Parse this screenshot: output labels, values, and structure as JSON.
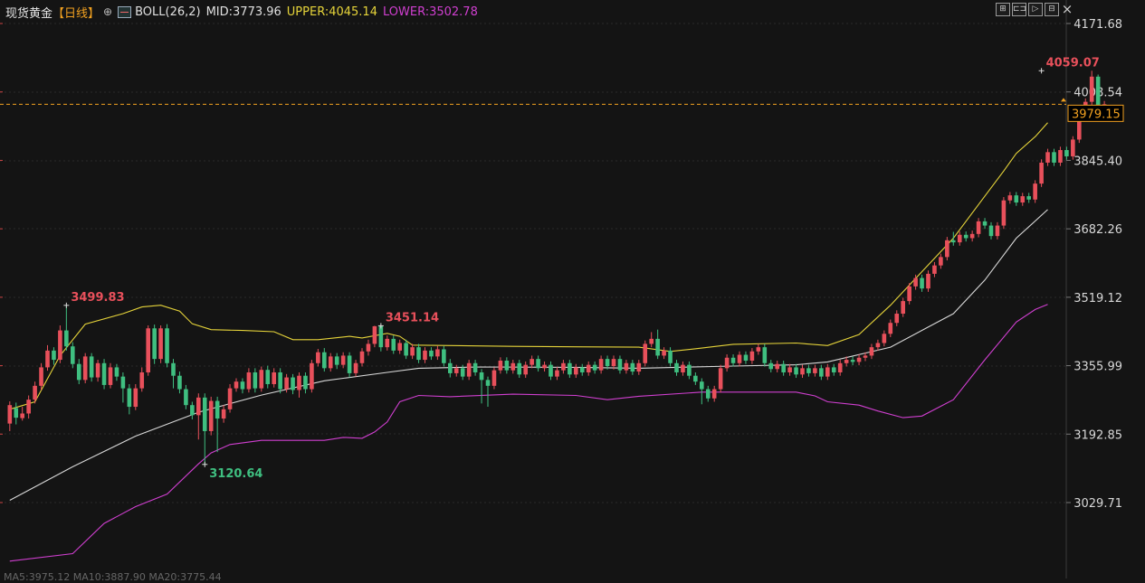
{
  "header": {
    "title": "现货黄金",
    "period": "【日线】",
    "period_arrow": "⊕",
    "indicator": "BOLL(26,2)",
    "mid": "MID:3773.96",
    "upper": "UPPER:4045.14",
    "lower": "LOWER:3502.78"
  },
  "toolbar": {
    "buttons": [
      "⊞",
      "⊏⊐",
      "▷",
      "⊟"
    ],
    "close": "×"
  },
  "footer_text": "MA5:3975.12  MA10:3887.90  MA20:3775.44",
  "colors": {
    "background": "#141414",
    "up": "#e8505b",
    "down": "#3fbf80",
    "mid": "#d8d8d8",
    "upper": "#e6d43a",
    "lower": "#d03fd0",
    "current_price": "#f0a020"
  },
  "chart_data": {
    "type": "candlestick",
    "indicator": "BOLL(26,2)",
    "y_ticks": [
      "4171.68",
      "4008.54",
      "3845.40",
      "3682.26",
      "3519.12",
      "3355.99",
      "3192.85",
      "3029.71"
    ],
    "ylim": [
      2880,
      4200
    ],
    "current_price": "3979.15",
    "annotations": [
      {
        "text": "3499.83",
        "value": 3499.83,
        "index": 9,
        "side": "high",
        "color": "#e8505b"
      },
      {
        "text": "3120.64",
        "value": 3120.64,
        "index": 31,
        "side": "low",
        "color": "#3fbf80"
      },
      {
        "text": "3451.14",
        "value": 3451.14,
        "index": 59,
        "side": "high",
        "color": "#e8505b"
      },
      {
        "text": "4059.07",
        "value": 4059.07,
        "index": 164,
        "side": "high",
        "color": "#e8505b"
      }
    ],
    "candles": [
      [
        3218,
        3262,
        3200,
        3271
      ],
      [
        3255,
        3232,
        3216,
        3268
      ],
      [
        3231,
        3242,
        3225,
        3258
      ],
      [
        3242,
        3275,
        3230,
        3285
      ],
      [
        3275,
        3308,
        3266,
        3318
      ],
      [
        3308,
        3352,
        3298,
        3362
      ],
      [
        3352,
        3392,
        3344,
        3405
      ],
      [
        3392,
        3370,
        3358,
        3400
      ],
      [
        3370,
        3440,
        3362,
        3452
      ],
      [
        3440,
        3402,
        3392,
        3499.83
      ],
      [
        3402,
        3360,
        3350,
        3412
      ],
      [
        3360,
        3322,
        3312,
        3372
      ],
      [
        3322,
        3378,
        3314,
        3386
      ],
      [
        3378,
        3328,
        3318,
        3386
      ],
      [
        3328,
        3362,
        3318,
        3370
      ],
      [
        3362,
        3310,
        3300,
        3372
      ],
      [
        3310,
        3352,
        3302,
        3362
      ],
      [
        3352,
        3330,
        3320,
        3360
      ],
      [
        3330,
        3302,
        3268,
        3340
      ],
      [
        3302,
        3258,
        3240,
        3312
      ],
      [
        3258,
        3302,
        3250,
        3312
      ],
      [
        3302,
        3340,
        3294,
        3352
      ],
      [
        3340,
        3445,
        3332,
        3452
      ],
      [
        3445,
        3372,
        3360,
        3454
      ],
      [
        3372,
        3445,
        3362,
        3452
      ],
      [
        3445,
        3362,
        3352,
        3455
      ],
      [
        3362,
        3332,
        3302,
        3372
      ],
      [
        3332,
        3300,
        3290,
        3342
      ],
      [
        3300,
        3262,
        3252,
        3310
      ],
      [
        3262,
        3238,
        3228,
        3270
      ],
      [
        3238,
        3280,
        3180,
        3290
      ],
      [
        3280,
        3200,
        3120.64,
        3290
      ],
      [
        3200,
        3272,
        3190,
        3282
      ],
      [
        3272,
        3230,
        3150,
        3282
      ],
      [
        3230,
        3252,
        3220,
        3262
      ],
      [
        3252,
        3302,
        3244,
        3312
      ],
      [
        3302,
        3318,
        3294,
        3326
      ],
      [
        3318,
        3300,
        3290,
        3326
      ],
      [
        3300,
        3340,
        3292,
        3350
      ],
      [
        3340,
        3302,
        3292,
        3350
      ],
      [
        3302,
        3346,
        3294,
        3354
      ],
      [
        3346,
        3312,
        3302,
        3356
      ],
      [
        3312,
        3340,
        3304,
        3350
      ],
      [
        3340,
        3300,
        3290,
        3350
      ],
      [
        3300,
        3328,
        3292,
        3336
      ],
      [
        3328,
        3298,
        3288,
        3336
      ],
      [
        3298,
        3332,
        3280,
        3340
      ],
      [
        3332,
        3300,
        3290,
        3340
      ],
      [
        3300,
        3362,
        3292,
        3370
      ],
      [
        3362,
        3388,
        3354,
        3396
      ],
      [
        3388,
        3350,
        3342,
        3398
      ],
      [
        3350,
        3378,
        3342,
        3386
      ],
      [
        3378,
        3358,
        3348,
        3386
      ],
      [
        3358,
        3380,
        3350,
        3388
      ],
      [
        3380,
        3338,
        3328,
        3388
      ],
      [
        3338,
        3362,
        3330,
        3370
      ],
      [
        3362,
        3390,
        3354,
        3398
      ],
      [
        3390,
        3408,
        3380,
        3418
      ],
      [
        3408,
        3450,
        3400,
        3451.14
      ],
      [
        3450,
        3400,
        3390,
        3451.14
      ],
      [
        3400,
        3420,
        3392,
        3428
      ],
      [
        3420,
        3392,
        3384,
        3428
      ],
      [
        3392,
        3410,
        3384,
        3418
      ],
      [
        3410,
        3380,
        3372,
        3418
      ],
      [
        3380,
        3400,
        3372,
        3408
      ],
      [
        3400,
        3370,
        3362,
        3408
      ],
      [
        3370,
        3392,
        3362,
        3400
      ],
      [
        3392,
        3378,
        3370,
        3400
      ],
      [
        3378,
        3395,
        3370,
        3403
      ],
      [
        3395,
        3362,
        3354,
        3403
      ],
      [
        3362,
        3338,
        3328,
        3372
      ],
      [
        3338,
        3350,
        3330,
        3358
      ],
      [
        3350,
        3330,
        3322,
        3358
      ],
      [
        3330,
        3362,
        3322,
        3370
      ],
      [
        3362,
        3340,
        3332,
        3370
      ],
      [
        3340,
        3322,
        3266,
        3348
      ],
      [
        3322,
        3308,
        3258,
        3330
      ],
      [
        3308,
        3345,
        3300,
        3352
      ],
      [
        3345,
        3368,
        3337,
        3376
      ],
      [
        3368,
        3345,
        3337,
        3376
      ],
      [
        3345,
        3362,
        3337,
        3370
      ],
      [
        3362,
        3335,
        3327,
        3370
      ],
      [
        3335,
        3358,
        3327,
        3366
      ],
      [
        3358,
        3372,
        3350,
        3380
      ],
      [
        3372,
        3350,
        3342,
        3380
      ],
      [
        3350,
        3358,
        3342,
        3366
      ],
      [
        3358,
        3330,
        3322,
        3366
      ],
      [
        3330,
        3345,
        3322,
        3353
      ],
      [
        3345,
        3362,
        3337,
        3370
      ],
      [
        3362,
        3335,
        3327,
        3370
      ],
      [
        3335,
        3352,
        3327,
        3360
      ],
      [
        3352,
        3340,
        3332,
        3360
      ],
      [
        3340,
        3358,
        3332,
        3366
      ],
      [
        3358,
        3345,
        3337,
        3366
      ],
      [
        3345,
        3372,
        3337,
        3380
      ],
      [
        3372,
        3355,
        3347,
        3380
      ],
      [
        3355,
        3372,
        3347,
        3380
      ],
      [
        3372,
        3345,
        3337,
        3380
      ],
      [
        3345,
        3362,
        3337,
        3370
      ],
      [
        3362,
        3342,
        3334,
        3370
      ],
      [
        3342,
        3362,
        3334,
        3370
      ],
      [
        3362,
        3408,
        3354,
        3416
      ],
      [
        3408,
        3420,
        3400,
        3436
      ],
      [
        3420,
        3380,
        3372,
        3442
      ],
      [
        3380,
        3392,
        3372,
        3400
      ],
      [
        3392,
        3362,
        3354,
        3400
      ],
      [
        3362,
        3340,
        3332,
        3370
      ],
      [
        3340,
        3358,
        3332,
        3366
      ],
      [
        3358,
        3332,
        3324,
        3366
      ],
      [
        3332,
        3318,
        3310,
        3340
      ],
      [
        3318,
        3300,
        3264,
        3326
      ],
      [
        3300,
        3278,
        3270,
        3308
      ],
      [
        3278,
        3300,
        3270,
        3308
      ],
      [
        3300,
        3350,
        3292,
        3358
      ],
      [
        3350,
        3375,
        3342,
        3383
      ],
      [
        3375,
        3362,
        3354,
        3383
      ],
      [
        3362,
        3382,
        3354,
        3390
      ],
      [
        3382,
        3368,
        3360,
        3390
      ],
      [
        3368,
        3390,
        3360,
        3398
      ],
      [
        3390,
        3400,
        3382,
        3408
      ],
      [
        3400,
        3362,
        3354,
        3408
      ],
      [
        3362,
        3348,
        3340,
        3370
      ],
      [
        3348,
        3360,
        3340,
        3368
      ],
      [
        3360,
        3340,
        3332,
        3368
      ],
      [
        3340,
        3352,
        3332,
        3360
      ],
      [
        3352,
        3335,
        3327,
        3360
      ],
      [
        3335,
        3350,
        3327,
        3358
      ],
      [
        3350,
        3338,
        3330,
        3358
      ],
      [
        3338,
        3350,
        3330,
        3358
      ],
      [
        3350,
        3330,
        3322,
        3358
      ],
      [
        3330,
        3352,
        3322,
        3360
      ],
      [
        3352,
        3340,
        3332,
        3360
      ],
      [
        3340,
        3362,
        3332,
        3370
      ],
      [
        3362,
        3370,
        3354,
        3378
      ],
      [
        3370,
        3365,
        3357,
        3378
      ],
      [
        3365,
        3375,
        3357,
        3383
      ],
      [
        3375,
        3380,
        3367,
        3388
      ],
      [
        3380,
        3400,
        3372,
        3408
      ],
      [
        3400,
        3410,
        3392,
        3418
      ],
      [
        3410,
        3432,
        3402,
        3440
      ],
      [
        3432,
        3458,
        3424,
        3466
      ],
      [
        3458,
        3480,
        3450,
        3488
      ],
      [
        3480,
        3510,
        3472,
        3518
      ],
      [
        3510,
        3545,
        3502,
        3553
      ],
      [
        3545,
        3565,
        3537,
        3573
      ],
      [
        3565,
        3540,
        3532,
        3573
      ],
      [
        3540,
        3575,
        3532,
        3583
      ],
      [
        3575,
        3595,
        3567,
        3603
      ],
      [
        3595,
        3615,
        3587,
        3623
      ],
      [
        3615,
        3655,
        3607,
        3663
      ],
      [
        3655,
        3650,
        3642,
        3675
      ],
      [
        3650,
        3668,
        3642,
        3676
      ],
      [
        3668,
        3660,
        3652,
        3676
      ],
      [
        3660,
        3670,
        3652,
        3678
      ],
      [
        3670,
        3700,
        3662,
        3708
      ],
      [
        3700,
        3690,
        3682,
        3708
      ],
      [
        3690,
        3665,
        3657,
        3698
      ],
      [
        3665,
        3690,
        3657,
        3698
      ],
      [
        3690,
        3750,
        3682,
        3758
      ],
      [
        3750,
        3762,
        3742,
        3770
      ],
      [
        3762,
        3745,
        3737,
        3770
      ],
      [
        3745,
        3760,
        3737,
        3768
      ],
      [
        3760,
        3752,
        3744,
        3768
      ],
      [
        3752,
        3790,
        3744,
        3798
      ],
      [
        3790,
        3840,
        3782,
        3848
      ],
      [
        3840,
        3865,
        3832,
        3873
      ],
      [
        3865,
        3840,
        3832,
        3873
      ],
      [
        3840,
        3870,
        3832,
        3878
      ],
      [
        3870,
        3855,
        3847,
        3878
      ],
      [
        3855,
        3895,
        3847,
        3903
      ],
      [
        3895,
        3960,
        3887,
        3968
      ],
      [
        3960,
        3985,
        3952,
        3993
      ],
      [
        3985,
        4045,
        3977,
        4059.07
      ],
      [
        4045,
        3960,
        3952,
        4050
      ],
      [
        3960,
        3979.15,
        3952,
        3987
      ]
    ],
    "boll_mid": [
      [
        0,
        3035
      ],
      [
        10,
        3115
      ],
      [
        20,
        3188
      ],
      [
        30,
        3245
      ],
      [
        40,
        3286
      ],
      [
        50,
        3320
      ],
      [
        60,
        3340
      ],
      [
        65,
        3350
      ],
      [
        75,
        3353
      ],
      [
        90,
        3352
      ],
      [
        100,
        3350
      ],
      [
        115,
        3355
      ],
      [
        125,
        3358
      ],
      [
        130,
        3365
      ],
      [
        140,
        3400
      ],
      [
        150,
        3480
      ],
      [
        155,
        3560
      ],
      [
        160,
        3660
      ],
      [
        165,
        3728
      ]
    ],
    "boll_upper": [
      [
        0,
        3252
      ],
      [
        4,
        3270
      ],
      [
        8,
        3380
      ],
      [
        12,
        3455
      ],
      [
        18,
        3480
      ],
      [
        21,
        3496
      ],
      [
        24,
        3500
      ],
      [
        27,
        3486
      ],
      [
        29,
        3456
      ],
      [
        32,
        3442
      ],
      [
        37,
        3440
      ],
      [
        42,
        3437
      ],
      [
        45,
        3418
      ],
      [
        49,
        3418
      ],
      [
        54,
        3426
      ],
      [
        56,
        3422
      ],
      [
        60,
        3433
      ],
      [
        62,
        3426
      ],
      [
        64,
        3405
      ],
      [
        80,
        3402
      ],
      [
        100,
        3400
      ],
      [
        105,
        3390
      ],
      [
        110,
        3398
      ],
      [
        115,
        3407
      ],
      [
        125,
        3410
      ],
      [
        130,
        3404
      ],
      [
        135,
        3430
      ],
      [
        140,
        3500
      ],
      [
        145,
        3580
      ],
      [
        150,
        3660
      ],
      [
        155,
        3760
      ],
      [
        158,
        3820
      ],
      [
        160,
        3862
      ],
      [
        163,
        3902
      ],
      [
        165,
        3935
      ]
    ],
    "boll_lower": [
      [
        0,
        2890
      ],
      [
        10,
        2908
      ],
      [
        15,
        2980
      ],
      [
        20,
        3020
      ],
      [
        25,
        3050
      ],
      [
        30,
        3122
      ],
      [
        32,
        3148
      ],
      [
        35,
        3168
      ],
      [
        40,
        3178
      ],
      [
        45,
        3178
      ],
      [
        50,
        3178
      ],
      [
        53,
        3185
      ],
      [
        56,
        3183
      ],
      [
        58,
        3198
      ],
      [
        60,
        3222
      ],
      [
        62,
        3270
      ],
      [
        65,
        3285
      ],
      [
        70,
        3282
      ],
      [
        80,
        3288
      ],
      [
        90,
        3285
      ],
      [
        95,
        3275
      ],
      [
        100,
        3283
      ],
      [
        110,
        3293
      ],
      [
        125,
        3293
      ],
      [
        128,
        3284
      ],
      [
        130,
        3270
      ],
      [
        135,
        3262
      ],
      [
        138,
        3248
      ],
      [
        142,
        3232
      ],
      [
        145,
        3236
      ],
      [
        150,
        3275
      ],
      [
        155,
        3370
      ],
      [
        160,
        3460
      ],
      [
        163,
        3490
      ],
      [
        165,
        3502
      ]
    ]
  }
}
